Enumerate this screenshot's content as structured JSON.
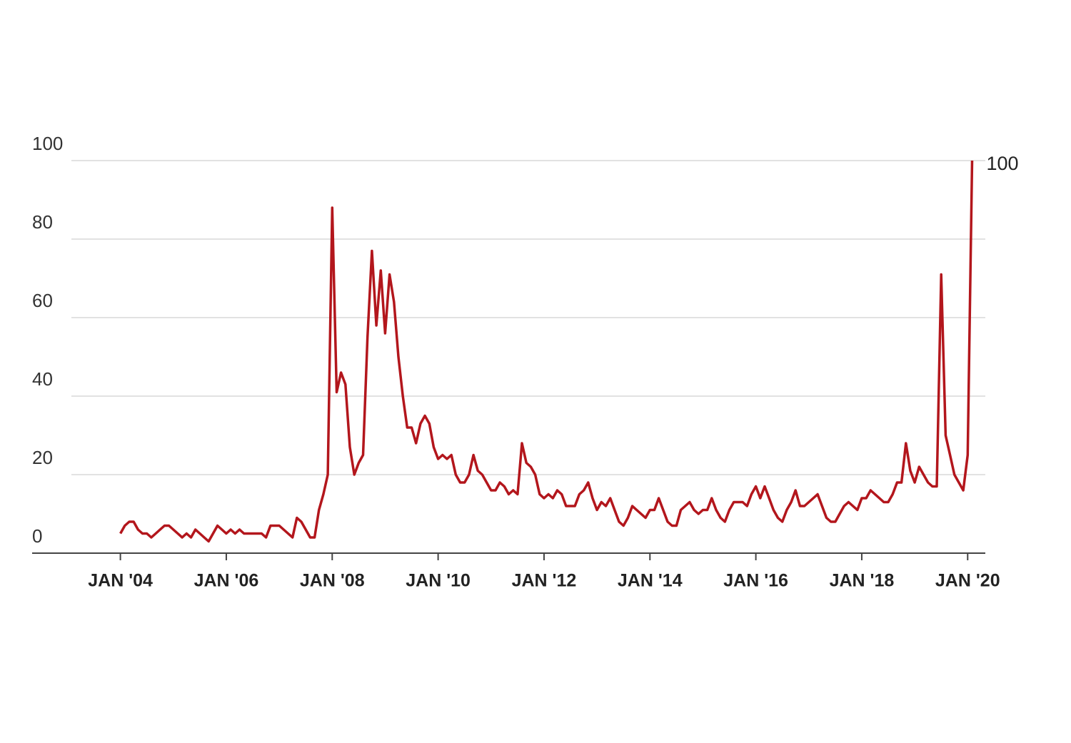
{
  "chart_data": {
    "type": "line",
    "color": "#b3161c",
    "x": [
      "2004-01",
      "2004-02",
      "2004-03",
      "2004-04",
      "2004-05",
      "2004-06",
      "2004-07",
      "2004-08",
      "2004-09",
      "2004-10",
      "2004-11",
      "2004-12",
      "2005-01",
      "2005-02",
      "2005-03",
      "2005-04",
      "2005-05",
      "2005-06",
      "2005-07",
      "2005-08",
      "2005-09",
      "2005-10",
      "2005-11",
      "2005-12",
      "2006-01",
      "2006-02",
      "2006-03",
      "2006-04",
      "2006-05",
      "2006-06",
      "2006-07",
      "2006-08",
      "2006-09",
      "2006-10",
      "2006-11",
      "2006-12",
      "2007-01",
      "2007-02",
      "2007-03",
      "2007-04",
      "2007-05",
      "2007-06",
      "2007-07",
      "2007-08",
      "2007-09",
      "2007-10",
      "2007-11",
      "2007-12",
      "2008-01",
      "2008-02",
      "2008-03",
      "2008-04",
      "2008-05",
      "2008-06",
      "2008-07",
      "2008-08",
      "2008-09",
      "2008-10",
      "2008-11",
      "2008-12",
      "2009-01",
      "2009-02",
      "2009-03",
      "2009-04",
      "2009-05",
      "2009-06",
      "2009-07",
      "2009-08",
      "2009-09",
      "2009-10",
      "2009-11",
      "2009-12",
      "2010-01",
      "2010-02",
      "2010-03",
      "2010-04",
      "2010-05",
      "2010-06",
      "2010-07",
      "2010-08",
      "2010-09",
      "2010-10",
      "2010-11",
      "2010-12",
      "2011-01",
      "2011-02",
      "2011-03",
      "2011-04",
      "2011-05",
      "2011-06",
      "2011-07",
      "2011-08",
      "2011-09",
      "2011-10",
      "2011-11",
      "2011-12",
      "2012-01",
      "2012-02",
      "2012-03",
      "2012-04",
      "2012-05",
      "2012-06",
      "2012-07",
      "2012-08",
      "2012-09",
      "2012-10",
      "2012-11",
      "2012-12",
      "2013-01",
      "2013-02",
      "2013-03",
      "2013-04",
      "2013-05",
      "2013-06",
      "2013-07",
      "2013-08",
      "2013-09",
      "2013-10",
      "2013-11",
      "2013-12",
      "2014-01",
      "2014-02",
      "2014-03",
      "2014-04",
      "2014-05",
      "2014-06",
      "2014-07",
      "2014-08",
      "2014-09",
      "2014-10",
      "2014-11",
      "2014-12",
      "2015-01",
      "2015-02",
      "2015-03",
      "2015-04",
      "2015-05",
      "2015-06",
      "2015-07",
      "2015-08",
      "2015-09",
      "2015-10",
      "2015-11",
      "2015-12",
      "2016-01",
      "2016-02",
      "2016-03",
      "2016-04",
      "2016-05",
      "2016-06",
      "2016-07",
      "2016-08",
      "2016-09",
      "2016-10",
      "2016-11",
      "2016-12",
      "2017-01",
      "2017-02",
      "2017-03",
      "2017-04",
      "2017-05",
      "2017-06",
      "2017-07",
      "2017-08",
      "2017-09",
      "2017-10",
      "2017-11",
      "2017-12",
      "2018-01",
      "2018-02",
      "2018-03",
      "2018-04",
      "2018-05",
      "2018-06",
      "2018-07",
      "2018-08",
      "2018-09",
      "2018-10",
      "2018-11",
      "2018-12",
      "2019-01",
      "2019-02",
      "2019-03",
      "2019-04",
      "2019-05",
      "2019-06",
      "2019-07",
      "2019-08",
      "2019-09",
      "2019-10",
      "2019-11",
      "2019-12",
      "2020-01",
      "2020-02"
    ],
    "values": [
      5,
      7,
      8,
      8,
      6,
      5,
      5,
      4,
      5,
      6,
      7,
      7,
      6,
      5,
      4,
      5,
      4,
      6,
      5,
      4,
      3,
      5,
      7,
      6,
      5,
      6,
      5,
      6,
      5,
      5,
      5,
      5,
      5,
      4,
      7,
      7,
      7,
      6,
      5,
      4,
      9,
      8,
      6,
      4,
      4,
      11,
      15,
      20,
      88,
      41,
      46,
      43,
      27,
      20,
      23,
      25,
      55,
      77,
      58,
      72,
      56,
      71,
      64,
      50,
      40,
      32,
      32,
      28,
      33,
      35,
      33,
      27,
      24,
      25,
      24,
      25,
      20,
      18,
      18,
      20,
      25,
      21,
      20,
      18,
      16,
      16,
      18,
      17,
      15,
      16,
      15,
      28,
      23,
      22,
      20,
      15,
      14,
      15,
      14,
      16,
      15,
      12,
      12,
      12,
      15,
      16,
      18,
      14,
      11,
      13,
      12,
      14,
      11,
      8,
      7,
      9,
      12,
      11,
      10,
      9,
      11,
      11,
      14,
      11,
      8,
      7,
      7,
      11,
      12,
      13,
      11,
      10,
      11,
      11,
      14,
      11,
      9,
      8,
      11,
      13,
      13,
      13,
      12,
      15,
      17,
      14,
      17,
      14,
      11,
      9,
      8,
      11,
      13,
      16,
      12,
      12,
      13,
      14,
      15,
      12,
      9,
      8,
      8,
      10,
      12,
      13,
      12,
      11,
      14,
      14,
      16,
      15,
      14,
      13,
      13,
      15,
      18,
      18,
      28,
      21,
      18,
      22,
      20,
      18,
      17,
      17,
      71,
      30,
      25,
      20,
      18,
      16,
      25,
      100
    ],
    "xlim": [
      "2002-05",
      "2020-05"
    ],
    "xticks": [
      {
        "value": "2004-01",
        "label": "JAN '04"
      },
      {
        "value": "2006-01",
        "label": "JAN '06"
      },
      {
        "value": "2008-01",
        "label": "JAN '08"
      },
      {
        "value": "2010-01",
        "label": "JAN '10"
      },
      {
        "value": "2012-01",
        "label": "JAN '12"
      },
      {
        "value": "2014-01",
        "label": "JAN '14"
      },
      {
        "value": "2016-01",
        "label": "JAN '16"
      },
      {
        "value": "2018-01",
        "label": "JAN '18"
      },
      {
        "value": "2020-01",
        "label": "JAN '20"
      }
    ],
    "ylim": [
      0,
      100
    ],
    "yticks": [
      0,
      20,
      40,
      60,
      80,
      100
    ],
    "grid": true
  }
}
